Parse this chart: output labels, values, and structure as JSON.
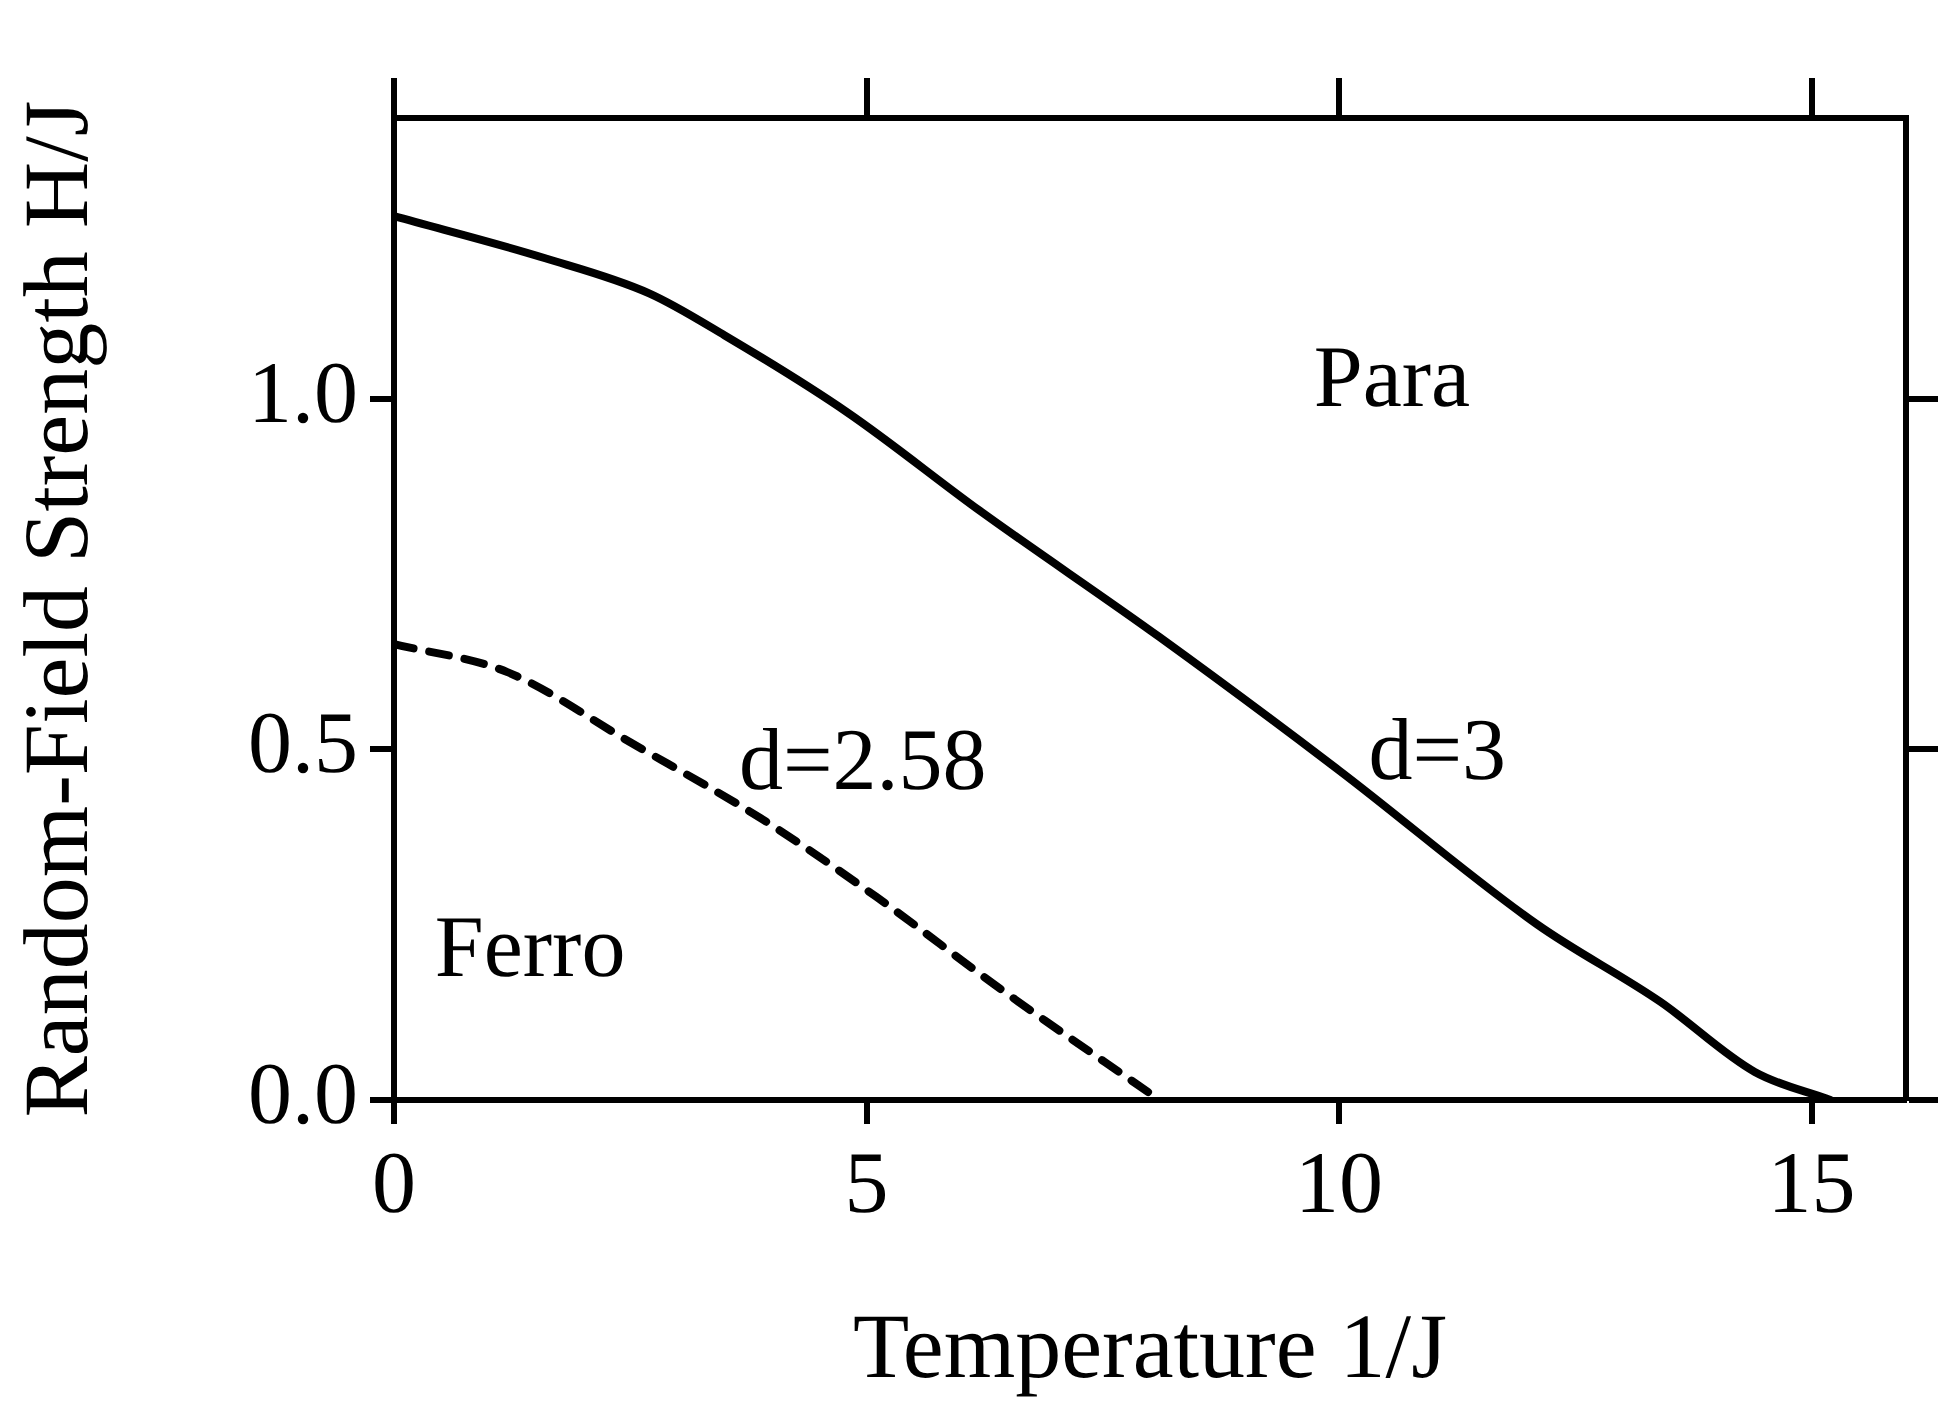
{
  "chart_data": {
    "type": "line",
    "xlabel": "Temperature 1/J",
    "ylabel": "Random-Field Strength H/J",
    "xlim": [
      0,
      16
    ],
    "xticks": [
      0,
      5,
      10,
      15
    ],
    "ylim": [
      0,
      1.4
    ],
    "yticks": [
      {
        "value": 0,
        "label": "0.0"
      },
      {
        "value": 0.5,
        "label": "0.5"
      },
      {
        "value": 1,
        "label": "1.0"
      }
    ],
    "grid": false,
    "legend": false,
    "marker": "none",
    "series": [
      {
        "color": "#000000",
        "line_style": "solid",
        "x": [
          0,
          1.6,
          2.7,
          3.5,
          4.8,
          6.2,
          8.1,
          10,
          12.1,
          13.4,
          14.4,
          15.2
        ],
        "values": [
          1.26,
          1.2,
          1.15,
          1.09,
          0.98,
          0.84,
          0.66,
          0.47,
          0.25,
          0.14,
          0.04,
          0
        ]
      },
      {
        "color": "#000000",
        "line_style": "dashed",
        "x": [
          0,
          1.2,
          2.5,
          3.9,
          5.1,
          6.4,
          8.1
        ],
        "values": [
          0.65,
          0.61,
          0.51,
          0.4,
          0.29,
          0.16,
          0
        ]
      }
    ],
    "annotations": [
      "Para",
      "d=3",
      "d=2.58",
      "Ferro"
    ]
  }
}
